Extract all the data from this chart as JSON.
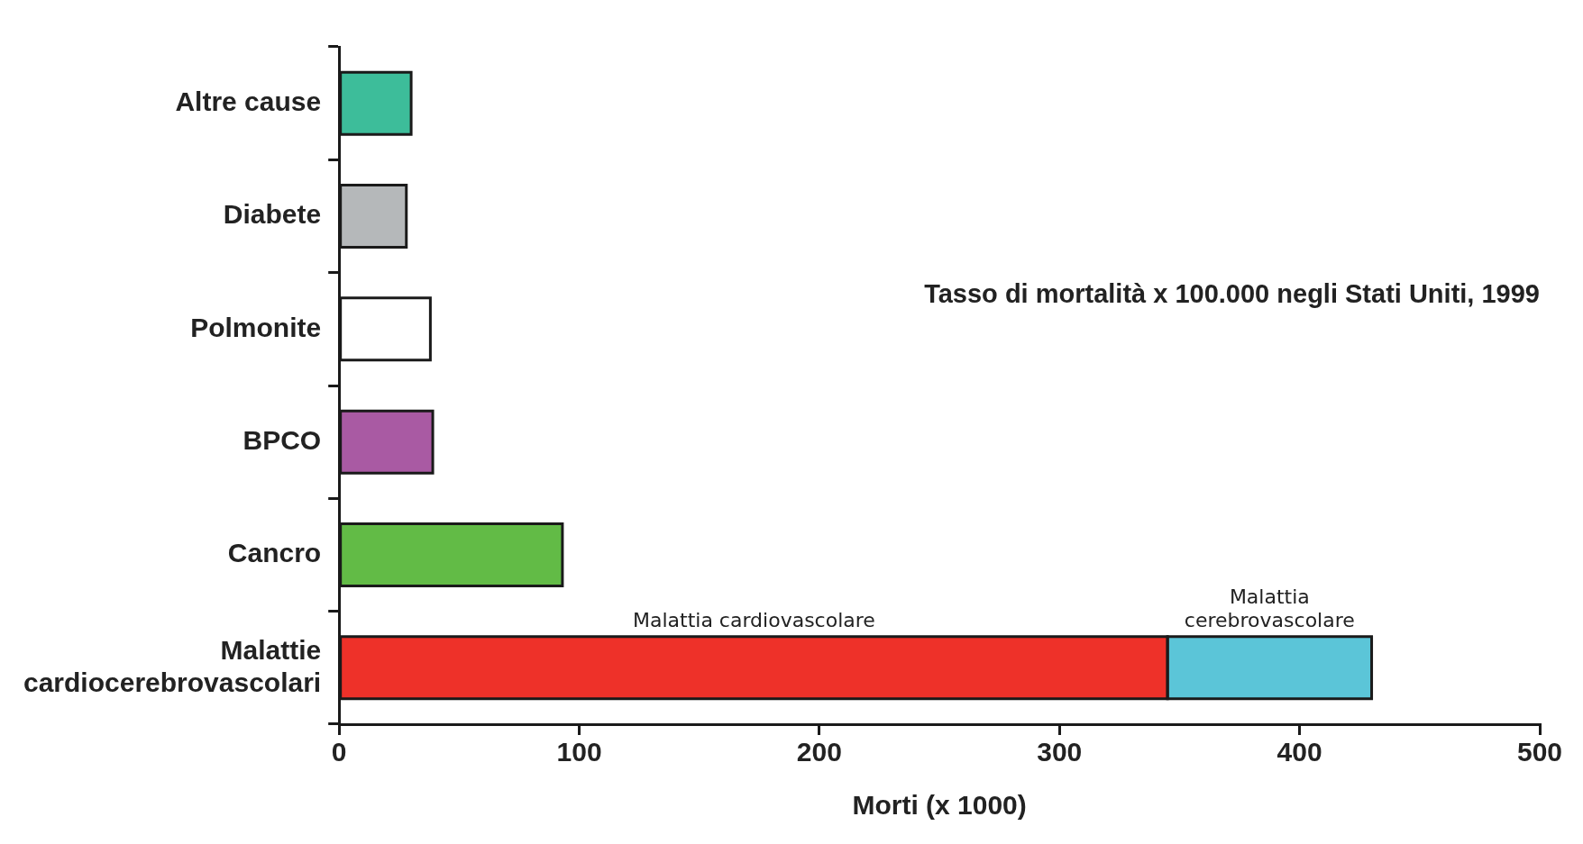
{
  "chart_data": {
    "type": "bar",
    "orientation": "horizontal",
    "stacked": true,
    "title": "Tasso di mortalità x 100.000 negli Stati Uniti, 1999",
    "xlabel": "Morti (x 1000)",
    "categories": [
      "Altre cause",
      "Diabete",
      "Polmonite",
      "BPCO",
      "Cancro",
      "Malattie\ncardiocerebrovascolari"
    ],
    "series": [
      {
        "colors": [
          "#3dbd9a",
          "#b5b8ba",
          "#ffffff",
          "#a95aa3",
          "#62bb46",
          "#ee3129"
        ],
        "values": [
          30,
          28,
          38,
          39,
          93,
          null
        ]
      },
      {
        "name": "Malattia cardiovascolare",
        "color": "#ee3129",
        "values": [
          null,
          null,
          null,
          null,
          null,
          345
        ]
      },
      {
        "name": "Malattia cerebrovascolare",
        "color": "#5bc5d8",
        "values": [
          null,
          null,
          null,
          null,
          null,
          85
        ]
      }
    ],
    "xlim": [
      0,
      500
    ],
    "xticks": [
      0,
      100,
      200,
      300,
      400,
      500
    ],
    "grid": false,
    "legend": false
  }
}
